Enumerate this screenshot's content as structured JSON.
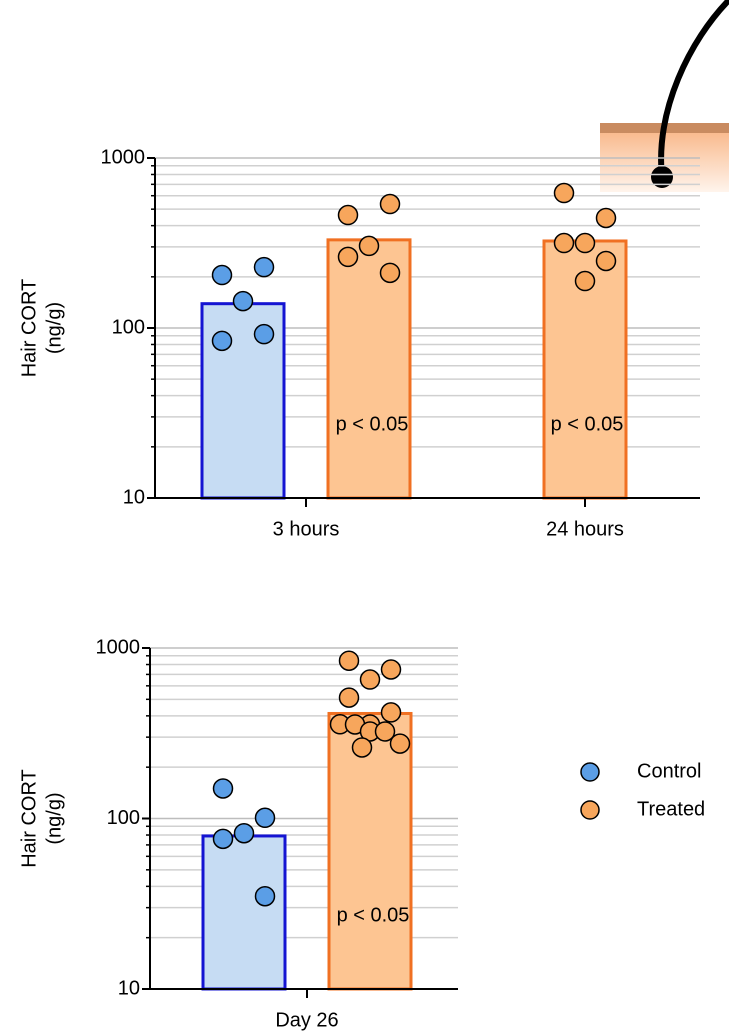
{
  "chart_data": [
    {
      "type": "bar",
      "y_label": [
        "Hair CORT",
        "(ng/g)"
      ],
      "y_scale": "log",
      "grid": true,
      "ylim": [
        10,
        1000
      ],
      "yticks": [
        10,
        100,
        1000
      ],
      "minor_yticks": [
        20,
        30,
        40,
        50,
        60,
        70,
        80,
        90,
        200,
        300,
        400,
        500,
        600,
        700,
        800,
        900
      ],
      "categories": [
        "3 hours",
        "24 hours"
      ],
      "p_labels": [
        "p < 0.05",
        "p < 0.05"
      ],
      "series": [
        {
          "name": "Control",
          "color": "#5b9ee6",
          "bar_fill": "#c6dcf3",
          "bar_stroke": "#1414d2",
          "values": [
            139,
            null
          ],
          "points": [
            [
              205,
              228,
              144,
              84,
              92
            ],
            []
          ]
        },
        {
          "name": "Treated",
          "color": "#f7a65c",
          "bar_fill": "#fdc592",
          "bar_stroke": "#f07022",
          "values": [
            330,
            325
          ],
          "points": [
            [
              462,
              536,
              304,
              262,
              211
            ],
            [
              622,
              444,
              316,
              316,
              248,
              189
            ]
          ]
        }
      ]
    },
    {
      "type": "bar",
      "y_label": [
        "Hair CORT",
        "(ng/g)"
      ],
      "y_scale": "log",
      "grid": true,
      "ylim": [
        10,
        1000
      ],
      "yticks": [
        10,
        100,
        1000
      ],
      "minor_yticks": [
        20,
        30,
        40,
        50,
        60,
        70,
        80,
        90,
        200,
        300,
        400,
        500,
        600,
        700,
        800,
        900
      ],
      "categories": [
        "Day 26"
      ],
      "p_labels": [
        "p < 0.05"
      ],
      "legend": "right",
      "series": [
        {
          "name": "Control",
          "color": "#5b9ee6",
          "bar_fill": "#c6dcf3",
          "bar_stroke": "#1414d2",
          "values": [
            79
          ],
          "points": [
            [
              150,
              101,
              82,
              76,
              35
            ]
          ]
        },
        {
          "name": "Treated",
          "color": "#f7a65c",
          "bar_fill": "#fdc592",
          "bar_stroke": "#f07022",
          "values": [
            413
          ],
          "points": [
            [
              842,
              748,
              653,
              512,
              419,
              356,
              357,
              356,
              324,
              324,
              275,
              261
            ]
          ]
        }
      ]
    }
  ]
}
